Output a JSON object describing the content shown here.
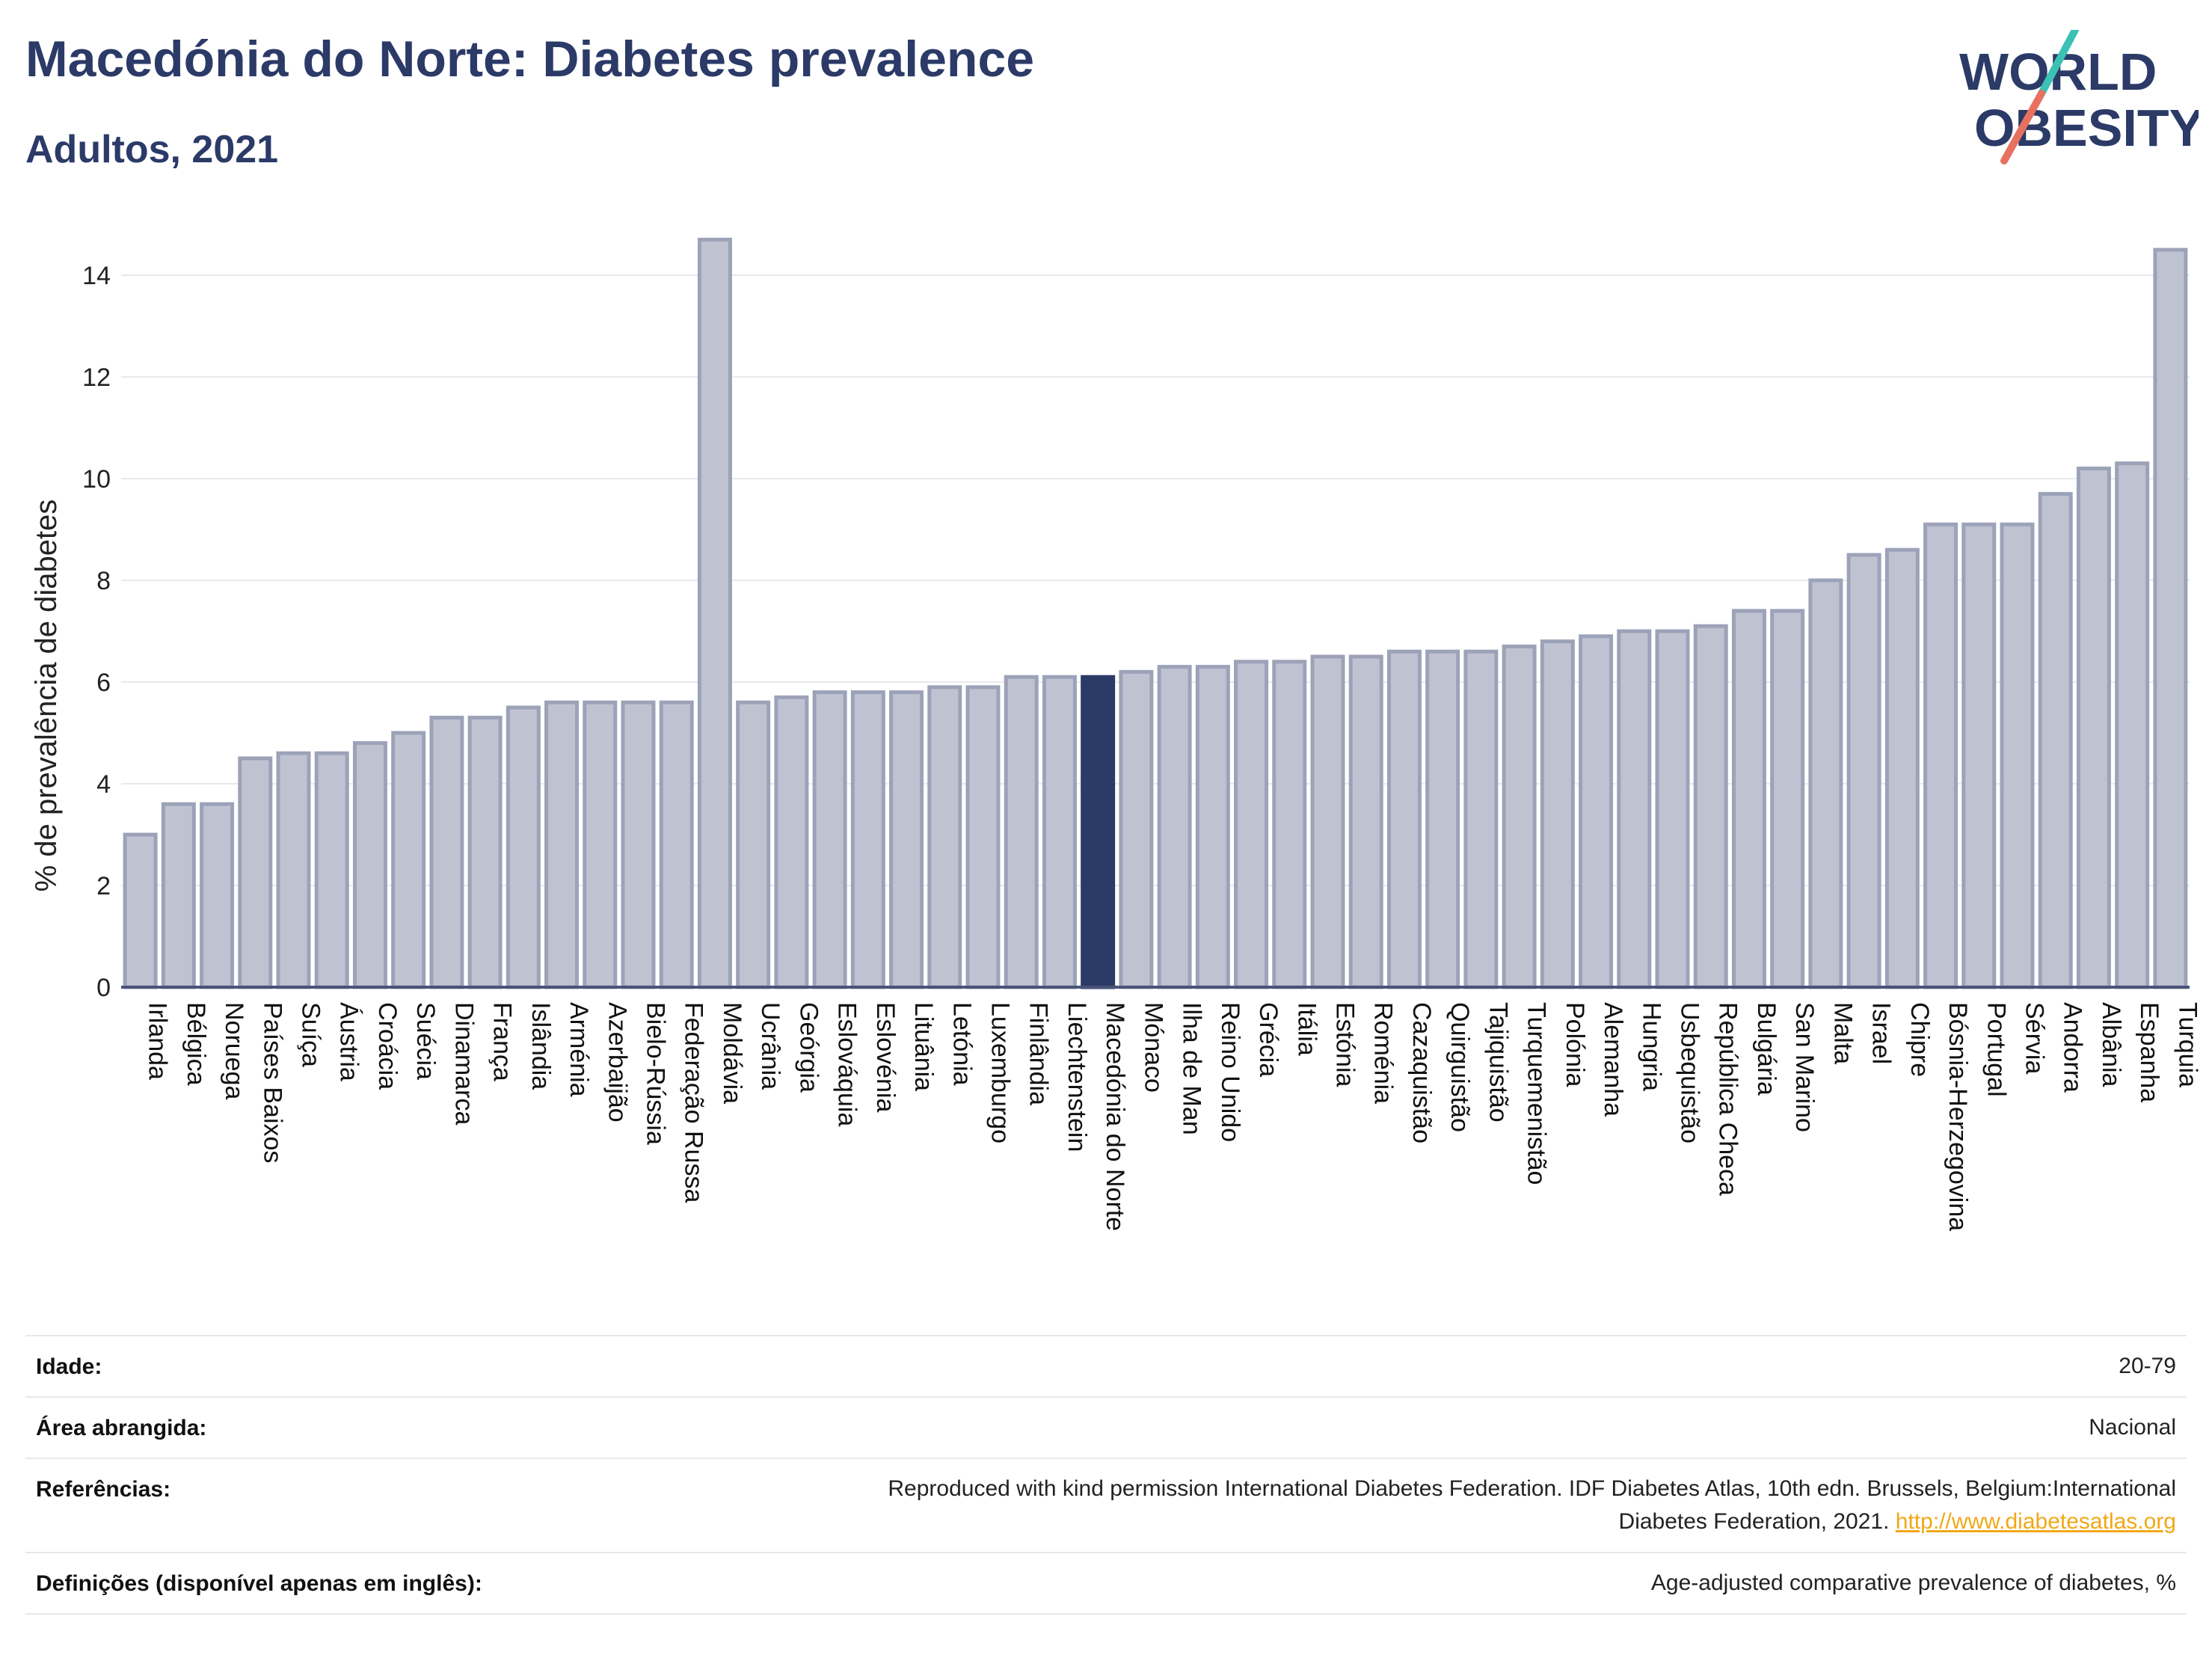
{
  "header": {
    "title": "Macedónia do Norte: Diabetes prevalence",
    "subtitle": "Adultos, 2021"
  },
  "logo": {
    "line1": "WORLD",
    "line2": "OBESITY",
    "colors": {
      "text": "#2b3a67",
      "slash_top": "#3cc1b5",
      "slash_bottom": "#e8705f"
    }
  },
  "colors": {
    "bar_fill": "#bfc3d1",
    "bar_stroke": "#9ca2b8",
    "highlight": "#2b3a67",
    "gridline": "#e8e8ee",
    "axis": "#4a5478"
  },
  "chart_data": {
    "type": "bar",
    "ylabel": "% de prevalência de diabetes",
    "xlabel": "",
    "ylim": [
      0,
      15
    ],
    "yticks": [
      0,
      2,
      4,
      6,
      8,
      10,
      12,
      14
    ],
    "grid": true,
    "highlight_category": "Macedónia do Norte",
    "categories": [
      "Irlanda",
      "Bélgica",
      "Noruega",
      "Países Baixos",
      "Suíça",
      "Áustria",
      "Croácia",
      "Suécia",
      "Dinamarca",
      "França",
      "Islândia",
      "Arménia",
      "Azerbaijão",
      "Bielo-Rússia",
      "Federação Russa",
      "Moldávia",
      "Ucrânia",
      "Geórgia",
      "Eslováquia",
      "Eslovénia",
      "Lituânia",
      "Letónia",
      "Luxemburgo",
      "Finlândia",
      "Liechtenstein",
      "Macedónia do Norte",
      "Mónaco",
      "Ilha de Man",
      "Reino Unido",
      "Grécia",
      "Itália",
      "Estónia",
      "Roménia",
      "Cazaquistão",
      "Quirguistão",
      "Tajiquistão",
      "Turquemenistão",
      "Polónia",
      "Alemanha",
      "Hungria",
      "Usbequistão",
      "República Checa",
      "Bulgária",
      "San Marino",
      "Malta",
      "Israel",
      "Chipre",
      "Bósnia-Herzegovina",
      "Portugal",
      "Sérvia",
      "Andorra",
      "Albânia",
      "Espanha",
      "Turquia"
    ],
    "values": [
      3.0,
      3.6,
      3.6,
      4.5,
      4.6,
      4.6,
      4.8,
      5.0,
      5.3,
      5.3,
      5.5,
      5.6,
      5.6,
      5.6,
      5.6,
      14.7,
      5.6,
      5.7,
      5.8,
      5.8,
      5.8,
      5.9,
      5.9,
      6.1,
      6.1,
      6.1,
      6.2,
      6.3,
      6.3,
      6.4,
      6.4,
      6.5,
      6.5,
      6.6,
      6.6,
      6.6,
      6.7,
      6.8,
      6.9,
      7.0,
      7.0,
      7.1,
      7.4,
      7.4,
      8.0,
      8.5,
      8.6,
      9.1,
      9.1,
      9.1,
      9.7,
      10.2,
      10.3,
      14.5
    ]
  },
  "info_table": [
    {
      "key": "Idade:",
      "value": "20-79"
    },
    {
      "key": "Área abrangida:",
      "value": "Nacional"
    },
    {
      "key": "Referências:",
      "value": "Reproduced with kind permission International Diabetes Federation.  IDF Diabetes Atlas, 10th edn. Brussels, Belgium:International",
      "value2": "Diabetes Federation, 2021.",
      "link": "http://www.diabetesatlas.org"
    },
    {
      "key": "Definições (disponível apenas em inglês):",
      "value": "Age-adjusted comparative prevalence of diabetes, %"
    }
  ]
}
